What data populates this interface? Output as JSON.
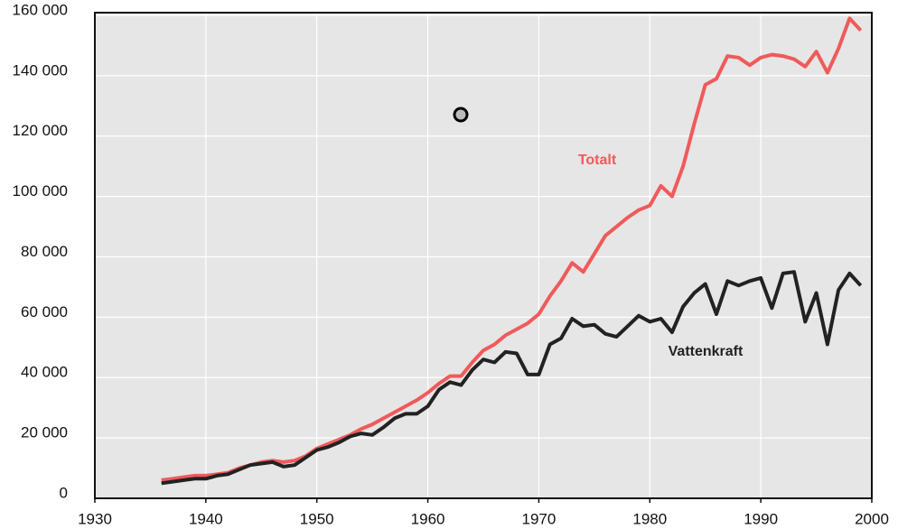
{
  "chart_data": {
    "type": "line",
    "x": [
      1936,
      1937,
      1938,
      1939,
      1940,
      1941,
      1942,
      1943,
      1944,
      1945,
      1946,
      1947,
      1948,
      1949,
      1950,
      1951,
      1952,
      1953,
      1954,
      1955,
      1956,
      1957,
      1958,
      1959,
      1960,
      1961,
      1962,
      1963,
      1964,
      1965,
      1966,
      1967,
      1968,
      1969,
      1970,
      1971,
      1972,
      1973,
      1974,
      1975,
      1976,
      1977,
      1978,
      1979,
      1980,
      1981,
      1982,
      1983,
      1984,
      1985,
      1986,
      1987,
      1988,
      1989,
      1990,
      1991,
      1992,
      1993,
      1994,
      1995,
      1996,
      1997,
      1998,
      1999
    ],
    "series": [
      {
        "name": "Totalt",
        "color": "#f05a5a",
        "values": [
          6000,
          6500,
          7000,
          7500,
          7500,
          8000,
          8500,
          10000,
          11000,
          12000,
          12500,
          12000,
          12500,
          14000,
          16500,
          18000,
          19500,
          21000,
          23000,
          24500,
          26500,
          28500,
          30500,
          32500,
          35000,
          38000,
          40500,
          40500,
          45000,
          49000,
          51000,
          54000,
          56000,
          58000,
          61000,
          67000,
          72000,
          78000,
          75000,
          81000,
          87000,
          90000,
          93000,
          95500,
          97000,
          103500,
          100000,
          110000,
          124000,
          137000,
          139000,
          146500,
          146000,
          143500,
          146000,
          147000,
          146500,
          145500,
          143000,
          148000,
          141000,
          149000,
          159000,
          155000
        ]
      },
      {
        "name": "Vattenkraft",
        "color": "#222222",
        "values": [
          5000,
          5500,
          6000,
          6500,
          6500,
          7500,
          8000,
          9500,
          11000,
          11500,
          12000,
          10500,
          11000,
          13500,
          16000,
          17000,
          18500,
          20500,
          21500,
          21000,
          23500,
          26500,
          28000,
          28000,
          30500,
          36000,
          38500,
          37500,
          42500,
          46000,
          45000,
          48500,
          48000,
          41000,
          41000,
          51000,
          53000,
          59500,
          57000,
          57500,
          54500,
          53500,
          57000,
          60500,
          58500,
          59500,
          55000,
          63500,
          68000,
          71000,
          61000,
          72000,
          70500,
          72000,
          73000,
          63000,
          74500,
          75000,
          58500,
          68000,
          51000,
          69000,
          74500,
          70500
        ]
      }
    ],
    "xlim": [
      1930,
      2000
    ],
    "xticks": [
      1930,
      1940,
      1950,
      1960,
      1970,
      1980,
      1990,
      2000
    ],
    "ylim": [
      0,
      160000
    ],
    "yticks": [
      0,
      {
        "value": 20000,
        "label": "20 000"
      },
      {
        "value": 40000,
        "label": "40 000"
      },
      {
        "value": 60000,
        "label": "60 000"
      },
      {
        "value": 80000,
        "label": "80 000"
      },
      {
        "value": 100000,
        "label": "100 000"
      },
      {
        "value": 120000,
        "label": "120 000"
      },
      {
        "value": 140000,
        "label": "140 000"
      },
      {
        "value": 160000,
        "label": "160 000"
      }
    ],
    "grid": true
  }
}
